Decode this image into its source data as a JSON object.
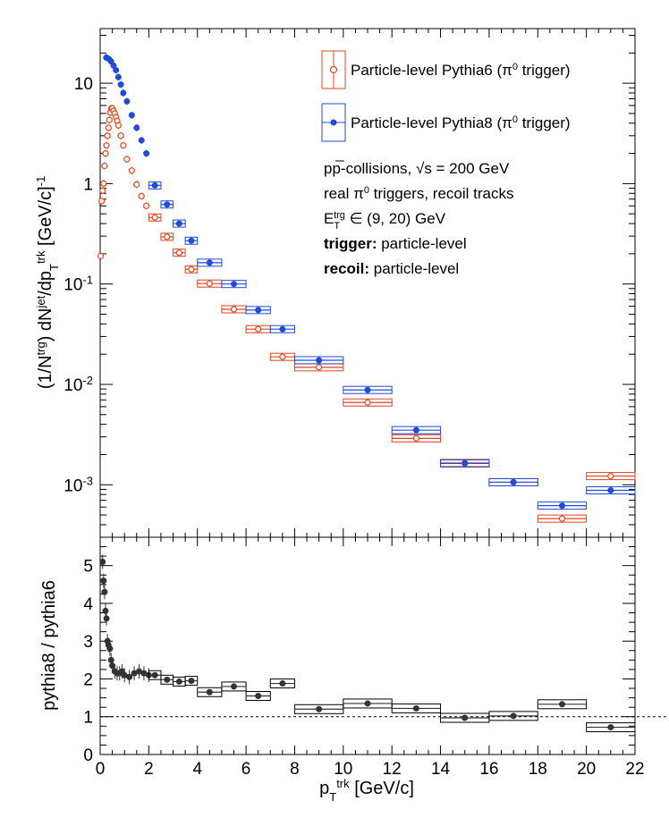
{
  "chart_data": [
    {
      "type": "scatter",
      "x_label": "p_T^trk [GeV/c]",
      "y_label": "(1/N^trg) dN^jet/dp_T^trk [GeV/c]^-1",
      "x_range": [
        0,
        22
      ],
      "y_range": [
        0.0003,
        35
      ],
      "y_scale": "log",
      "y_ticks": [
        "10",
        "1",
        "10^-1",
        "10^-2",
        "10^-3"
      ],
      "x_ticks": [
        "0",
        "2",
        "4",
        "6",
        "8",
        "10",
        "12",
        "14",
        "16",
        "18",
        "20",
        "22"
      ],
      "legend_placement": "top-right",
      "legend": [
        {
          "label": "Particle-level Pythia6 (π⁰ trigger)",
          "color": "#e0451b",
          "marker": "open-circle"
        },
        {
          "label": "Particle-level Pythia8 (π⁰ trigger)",
          "color": "#1f4bd8",
          "marker": "filled-circle"
        }
      ],
      "annotations": [
        {
          "text": "pp-collisions, √s = 200 GeV"
        },
        {
          "text": "real π⁰ triggers, recoil tracks"
        },
        {
          "text": "E_T^trg ∈ (9, 20) GeV"
        },
        {
          "bold": "trigger:",
          "text": " particle-level"
        },
        {
          "bold": "recoil:",
          "text": " particle-level"
        }
      ],
      "series": [
        {
          "name": "Particle-level Pythia6 (π⁰ trigger)",
          "color": "#e0451b",
          "marker": "open-circle",
          "points": [
            {
              "x": 0.02,
              "y": 0.19
            },
            {
              "x": 0.06,
              "y": 0.67
            },
            {
              "x": 0.1,
              "y": 0.85
            },
            {
              "x": 0.14,
              "y": 1.0
            },
            {
              "x": 0.18,
              "y": 1.5
            },
            {
              "x": 0.22,
              "y": 2.0
            },
            {
              "x": 0.26,
              "y": 2.4
            },
            {
              "x": 0.3,
              "y": 3.0
            },
            {
              "x": 0.34,
              "y": 3.6
            },
            {
              "x": 0.38,
              "y": 4.3
            },
            {
              "x": 0.42,
              "y": 5.1
            },
            {
              "x": 0.46,
              "y": 5.6
            },
            {
              "x": 0.5,
              "y": 5.6
            },
            {
              "x": 0.55,
              "y": 5.3
            },
            {
              "x": 0.6,
              "y": 5.0
            },
            {
              "x": 0.65,
              "y": 4.6
            },
            {
              "x": 0.7,
              "y": 4.2
            },
            {
              "x": 0.75,
              "y": 3.8
            },
            {
              "x": 0.85,
              "y": 3.0
            },
            {
              "x": 0.95,
              "y": 2.4
            },
            {
              "x": 1.1,
              "y": 1.75
            },
            {
              "x": 1.3,
              "y": 1.35
            },
            {
              "x": 1.5,
              "y": 0.98
            },
            {
              "x": 1.7,
              "y": 0.75
            },
            {
              "x": 1.9,
              "y": 0.6
            },
            {
              "x": 2.25,
              "y": 0.46,
              "w": 0.5
            },
            {
              "x": 2.75,
              "y": 0.295,
              "w": 0.5
            },
            {
              "x": 3.25,
              "y": 0.205,
              "w": 0.5
            },
            {
              "x": 3.75,
              "y": 0.14,
              "w": 0.5
            },
            {
              "x": 4.5,
              "y": 0.101,
              "w": 1
            },
            {
              "x": 5.5,
              "y": 0.056,
              "w": 1
            },
            {
              "x": 6.5,
              "y": 0.0355,
              "w": 1
            },
            {
              "x": 7.5,
              "y": 0.0188,
              "w": 1
            },
            {
              "x": 9,
              "y": 0.0148,
              "w": 2
            },
            {
              "x": 11,
              "y": 0.0066,
              "w": 2
            },
            {
              "x": 13,
              "y": 0.0029,
              "w": 2
            },
            {
              "x": 15,
              "y": 0.00165,
              "w": 2
            },
            {
              "x": 17,
              "y": 0.00106,
              "w": 2
            },
            {
              "x": 19,
              "y": 0.00046,
              "w": 2
            },
            {
              "x": 21,
              "y": 0.00122,
              "w": 2
            }
          ]
        },
        {
          "name": "Particle-level Pythia8 (π⁰ trigger)",
          "color": "#1f4bd8",
          "marker": "filled-circle",
          "points": [
            {
              "x": 0.25,
              "y": 18.0
            },
            {
              "x": 0.35,
              "y": 17.5
            },
            {
              "x": 0.45,
              "y": 16.5
            },
            {
              "x": 0.55,
              "y": 15.0
            },
            {
              "x": 0.65,
              "y": 13.5
            },
            {
              "x": 0.75,
              "y": 11.5
            },
            {
              "x": 0.85,
              "y": 9.7
            },
            {
              "x": 0.95,
              "y": 8.0
            },
            {
              "x": 1.1,
              "y": 6.6
            },
            {
              "x": 1.3,
              "y": 4.8
            },
            {
              "x": 1.5,
              "y": 3.6
            },
            {
              "x": 1.7,
              "y": 2.7
            },
            {
              "x": 1.9,
              "y": 2.0
            },
            {
              "x": 2.25,
              "y": 0.96,
              "w": 0.5
            },
            {
              "x": 2.75,
              "y": 0.62,
              "w": 0.5
            },
            {
              "x": 3.25,
              "y": 0.4,
              "w": 0.5
            },
            {
              "x": 3.75,
              "y": 0.27,
              "w": 0.5
            },
            {
              "x": 4.5,
              "y": 0.163,
              "w": 1
            },
            {
              "x": 5.5,
              "y": 0.1,
              "w": 1
            },
            {
              "x": 6.5,
              "y": 0.055,
              "w": 1
            },
            {
              "x": 7.5,
              "y": 0.0355,
              "w": 1
            },
            {
              "x": 9,
              "y": 0.0174,
              "w": 2
            },
            {
              "x": 11,
              "y": 0.0088,
              "w": 2
            },
            {
              "x": 13,
              "y": 0.0035,
              "w": 2
            },
            {
              "x": 15,
              "y": 0.00163,
              "w": 2
            },
            {
              "x": 17,
              "y": 0.00106,
              "w": 2
            },
            {
              "x": 19,
              "y": 0.00062,
              "w": 2
            },
            {
              "x": 21,
              "y": 0.00088,
              "w": 2
            }
          ]
        }
      ]
    },
    {
      "type": "scatter",
      "x_label": "p_T^trk [GeV/c]",
      "y_label": "pythia8 / pythia6",
      "x_range": [
        0,
        22
      ],
      "y_range": [
        0,
        5.75
      ],
      "y_ticks": [
        "0",
        "1",
        "2",
        "3",
        "4",
        "5"
      ],
      "reference_line": {
        "y": 1,
        "style": "dashed"
      },
      "series": [
        {
          "name": "pythia8 / pythia6",
          "color": "#333333",
          "marker": "filled-circle",
          "points": [
            {
              "x": 0.1,
              "y": 5.1
            },
            {
              "x": 0.14,
              "y": 4.6
            },
            {
              "x": 0.18,
              "y": 4.3
            },
            {
              "x": 0.22,
              "y": 3.8
            },
            {
              "x": 0.26,
              "y": 3.6
            },
            {
              "x": 0.3,
              "y": 3.0
            },
            {
              "x": 0.34,
              "y": 2.9
            },
            {
              "x": 0.4,
              "y": 2.8
            },
            {
              "x": 0.45,
              "y": 2.5
            },
            {
              "x": 0.5,
              "y": 2.35
            },
            {
              "x": 0.6,
              "y": 2.2
            },
            {
              "x": 0.7,
              "y": 2.15
            },
            {
              "x": 0.8,
              "y": 2.15
            },
            {
              "x": 0.9,
              "y": 2.2
            },
            {
              "x": 1.0,
              "y": 2.1
            },
            {
              "x": 1.2,
              "y": 2.05
            },
            {
              "x": 1.4,
              "y": 2.15
            },
            {
              "x": 1.6,
              "y": 2.2
            },
            {
              "x": 1.8,
              "y": 2.15
            },
            {
              "x": 2.0,
              "y": 2.1
            },
            {
              "x": 2.25,
              "y": 2.1,
              "w": 0.5
            },
            {
              "x": 2.75,
              "y": 1.98,
              "w": 0.5
            },
            {
              "x": 3.25,
              "y": 1.93,
              "w": 0.5
            },
            {
              "x": 3.75,
              "y": 1.95,
              "w": 0.5
            },
            {
              "x": 4.5,
              "y": 1.65,
              "w": 1
            },
            {
              "x": 5.5,
              "y": 1.8,
              "w": 1
            },
            {
              "x": 6.5,
              "y": 1.55,
              "w": 1
            },
            {
              "x": 7.5,
              "y": 1.88,
              "w": 1
            },
            {
              "x": 9,
              "y": 1.2,
              "w": 2
            },
            {
              "x": 11,
              "y": 1.35,
              "w": 2
            },
            {
              "x": 13,
              "y": 1.22,
              "w": 2
            },
            {
              "x": 15,
              "y": 0.97,
              "w": 2
            },
            {
              "x": 17,
              "y": 1.02,
              "w": 2
            },
            {
              "x": 19,
              "y": 1.33,
              "w": 2
            },
            {
              "x": 21,
              "y": 0.72,
              "w": 2
            }
          ]
        }
      ]
    }
  ]
}
